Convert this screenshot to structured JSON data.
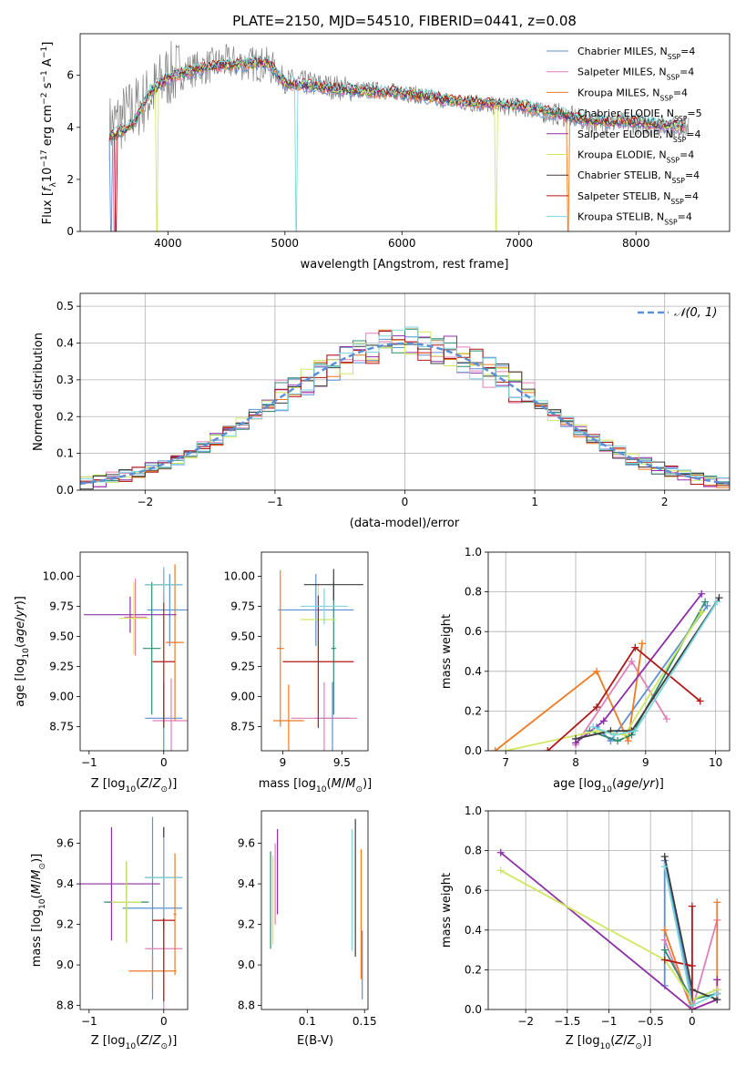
{
  "colors": {
    "Chabrier MILES": "#5b8fd6",
    "Salpeter MILES": "#e07fb8",
    "Kroupa MILES": "#ee7a22",
    "Chabrier ELODIE": "#2f8c6e",
    "Salpeter ELODIE": "#8f2fa8",
    "Kroupa ELODIE": "#cfe860",
    "Chabrier STELIB": "#3c3c3c",
    "Salpeter STELIB": "#b01818",
    "Kroupa STELIB": "#7dd6de",
    "data": "#808080",
    "gaussian": "#5b8fd6"
  },
  "chart_data": [
    {
      "id": "spectrum",
      "type": "line",
      "title": "PLATE=2150, MJD=54510, FIBERID=0441, z=0.08",
      "xlabel": "wavelength [Angstrom, rest frame]",
      "ylabel": "Flux [fλ10⁻¹⁷ erg cm⁻² s⁻¹ A⁻¹]",
      "xlim": [
        3250,
        8800
      ],
      "ylim": [
        0,
        7.6
      ],
      "xticks": [
        4000,
        5000,
        6000,
        7000,
        8000
      ],
      "yticks": [
        0,
        2,
        4,
        6
      ],
      "legend_position": "upper right",
      "legend": [
        {
          "name": "Chabrier MILES, N",
          "sub": "SSP",
          "val": "=4"
        },
        {
          "name": "Salpeter MILES, N",
          "sub": "SSP",
          "val": "=4"
        },
        {
          "name": "Kroupa MILES, N",
          "sub": "SSP",
          "val": "=4"
        },
        {
          "name": "Chabrier ELODIE, N",
          "sub": "SSP",
          "val": "=5"
        },
        {
          "name": "Salpeter ELODIE, N",
          "sub": "SSP",
          "val": "=4"
        },
        {
          "name": "Kroupa ELODIE, N",
          "sub": "SSP",
          "val": "=4"
        },
        {
          "name": "Chabrier STELIB, N",
          "sub": "SSP",
          "val": "=4"
        },
        {
          "name": "Salpeter STELIB, N",
          "sub": "SSP",
          "val": "=4"
        },
        {
          "name": "Kroupa STELIB, N",
          "sub": "SSP",
          "val": "=4"
        }
      ],
      "data_profile": {
        "x": [
          3500,
          3800,
          4000,
          4500,
          4860,
          5000,
          5500,
          6000,
          6500,
          7000,
          7400,
          7600,
          8000,
          8400
        ],
        "y": [
          4.0,
          5.0,
          6.0,
          6.5,
          6.4,
          5.8,
          5.5,
          5.35,
          4.95,
          4.75,
          4.45,
          4.2,
          4.15,
          4.0
        ]
      },
      "model_profile": {
        "x": [
          3500,
          3700,
          3850,
          4000,
          4300,
          4850,
          5000,
          5500,
          6000,
          6500,
          7000,
          7300,
          7600,
          8000,
          8400
        ],
        "y": [
          3.6,
          4.1,
          5.4,
          5.9,
          6.3,
          6.5,
          5.7,
          5.45,
          5.3,
          5.0,
          4.85,
          4.55,
          4.25,
          4.2,
          4.0
        ]
      }
    },
    {
      "id": "residuals",
      "type": "step",
      "xlabel": "(data-model)/error",
      "ylabel": "Normed distribution",
      "xlim": [
        -2.5,
        2.5
      ],
      "ylim": [
        0,
        0.535
      ],
      "xticks": [
        -2,
        -1,
        0,
        1,
        2
      ],
      "yticks": [
        0.0,
        0.1,
        0.2,
        0.3,
        0.4,
        0.5
      ],
      "legend_label": "𝒩(0, 1)",
      "legend_position": "upper right",
      "bin_edges_start": -2.5,
      "bin_width": 0.1
    },
    {
      "id": "age_Z",
      "type": "errorbar",
      "xlabel": "Z [log10(Z/Z⊙)]",
      "ylabel": "age  [log10(age/yr)]",
      "xlim": [
        -1.12,
        0.32
      ],
      "ylim": [
        8.55,
        10.2
      ],
      "xticks": [
        -1,
        0
      ],
      "yticks": [
        8.75,
        9.0,
        9.25,
        9.5,
        9.75,
        10.0
      ],
      "points": [
        {
          "model": "Chabrier MILES",
          "x": 0.08,
          "xerr": 0.3,
          "y": 9.72,
          "yerr": 0.3
        },
        {
          "model": "Chabrier MILES",
          "x": 0.0,
          "xerr": 0.25,
          "y": 8.82,
          "yerr": 0.3
        },
        {
          "model": "Salpeter MILES",
          "x": -0.38,
          "xerr": 0.15,
          "y": 9.66,
          "yerr": 0.32
        },
        {
          "model": "Salpeter MILES",
          "x": 0.1,
          "xerr": 0.25,
          "y": 8.8,
          "yerr": 0.35
        },
        {
          "model": "Kroupa MILES",
          "x": 0.15,
          "xerr": 0.12,
          "y": 9.45,
          "yerr": 0.65
        },
        {
          "model": "Chabrier ELODIE",
          "x": -0.16,
          "xerr": 0.12,
          "y": 9.4,
          "yerr": 0.55
        },
        {
          "model": "Salpeter ELODIE",
          "x": -0.45,
          "xerr": 0.62,
          "y": 9.68,
          "yerr": 0.15
        },
        {
          "model": "Kroupa ELODIE",
          "x": -0.4,
          "xerr": 0.2,
          "y": 9.65,
          "yerr": 0.3
        },
        {
          "model": "Chabrier STELIB",
          "x": 0.0,
          "xerr": 0.25,
          "y": 9.93,
          "yerr": 0.13
        },
        {
          "model": "Salpeter STELIB",
          "x": 0.0,
          "xerr": 0.15,
          "y": 9.29,
          "yerr": 0.55
        },
        {
          "model": "Kroupa STELIB",
          "x": 0.0,
          "xerr": 0.25,
          "y": 9.93,
          "yerr": 0.15
        }
      ]
    },
    {
      "id": "age_mass",
      "type": "errorbar",
      "xlabel": "mass [log10(M/M⊙)]",
      "ylabel": "",
      "xlim": [
        8.82,
        9.72
      ],
      "ylim": [
        8.55,
        10.2
      ],
      "xticks": [
        9.0,
        9.5
      ],
      "yticks": [
        8.75,
        9.0,
        9.25,
        9.5,
        9.75,
        10.0
      ],
      "points": [
        {
          "model": "Chabrier MILES",
          "x": 9.28,
          "xerr": 0.32,
          "y": 9.72,
          "yerr": 0.3
        },
        {
          "model": "Chabrier MILES",
          "x": 9.42,
          "xerr": 0.15,
          "y": 8.82,
          "yerr": 0.3
        },
        {
          "model": "Salpeter MILES",
          "x": 9.35,
          "xerr": 0.28,
          "y": 8.82,
          "yerr": 0.3
        },
        {
          "model": "Kroupa MILES",
          "x": 9.05,
          "xerr": 0.13,
          "y": 8.8,
          "yerr": 0.3
        },
        {
          "model": "Kroupa MILES",
          "x": 8.98,
          "xerr": 0.03,
          "y": 9.4,
          "yerr": 0.65
        },
        {
          "model": "Chabrier ELODIE",
          "x": 9.43,
          "xerr": 0.02,
          "y": 9.4,
          "yerr": 0.55
        },
        {
          "model": "Kroupa ELODIE",
          "x": 9.3,
          "xerr": 0.15,
          "y": 9.64,
          "yerr": 0.3
        },
        {
          "model": "Chabrier STELIB",
          "x": 9.43,
          "xerr": 0.25,
          "y": 9.93,
          "yerr": 0.13
        },
        {
          "model": "Salpeter STELIB",
          "x": 9.3,
          "xerr": 0.3,
          "y": 9.29,
          "yerr": 0.55
        },
        {
          "model": "Kroupa STELIB",
          "x": 9.35,
          "xerr": 0.2,
          "y": 9.75,
          "yerr": 0.15
        }
      ]
    },
    {
      "id": "weight_age",
      "type": "line",
      "xlabel": "age  [log10(age/yr)]",
      "ylabel": "mass weight",
      "xlim": [
        6.75,
        10.2
      ],
      "ylim": [
        0,
        1
      ],
      "xticks": [
        7,
        8,
        9,
        10
      ],
      "yticks": [
        0.0,
        0.2,
        0.4,
        0.6,
        0.8,
        1.0
      ],
      "series": [
        {
          "model": "Chabrier MILES",
          "x": [
            8.3,
            8.5,
            9.88
          ],
          "y": [
            0.12,
            0.05,
            0.73
          ]
        },
        {
          "model": "Salpeter MILES",
          "x": [
            8.0,
            8.8,
            9.3
          ],
          "y": [
            0.03,
            0.45,
            0.16
          ]
        },
        {
          "model": "Kroupa MILES",
          "x": [
            6.85,
            8.3,
            8.75,
            8.95
          ],
          "y": [
            0.0,
            0.4,
            0.05,
            0.54
          ]
        },
        {
          "model": "Chabrier ELODIE",
          "x": [
            8.2,
            8.6,
            8.8,
            9.85
          ],
          "y": [
            0.1,
            0.05,
            0.08,
            0.75
          ]
        },
        {
          "model": "Salpeter ELODIE",
          "x": [
            8.0,
            8.4,
            9.8
          ],
          "y": [
            0.04,
            0.15,
            0.79
          ]
        },
        {
          "model": "Kroupa ELODIE",
          "x": [
            7.0,
            8.3,
            8.7,
            9.8
          ],
          "y": [
            0.0,
            0.1,
            0.08,
            0.7
          ]
        },
        {
          "model": "Chabrier STELIB",
          "x": [
            8.0,
            8.5,
            8.8,
            10.05
          ],
          "y": [
            0.06,
            0.1,
            0.1,
            0.77
          ]
        },
        {
          "model": "Salpeter STELIB",
          "x": [
            7.6,
            8.3,
            8.85,
            9.78
          ],
          "y": [
            0.0,
            0.22,
            0.52,
            0.25
          ]
        },
        {
          "model": "Kroupa STELIB",
          "x": [
            8.25,
            8.55,
            8.85,
            10.02
          ],
          "y": [
            0.12,
            0.08,
            0.1,
            0.75
          ]
        }
      ]
    },
    {
      "id": "mass_Z",
      "type": "errorbar",
      "xlabel": "Z [log10(Z/Z⊙)]",
      "ylabel": "mass [log10(M/M⊙)]",
      "xlim": [
        -1.12,
        0.32
      ],
      "ylim": [
        8.78,
        9.76
      ],
      "xticks": [
        -1,
        0
      ],
      "yticks": [
        8.8,
        9.0,
        9.2,
        9.4,
        9.6
      ],
      "points": [
        {
          "model": "Chabrier MILES",
          "x": -0.15,
          "xerr": 0.4,
          "y": 9.28,
          "yerr": 0.45
        },
        {
          "model": "Salpeter MILES",
          "x": 0.0,
          "xerr": 0.25,
          "y": 9.08,
          "yerr": 0.6
        },
        {
          "model": "Kroupa MILES",
          "x": -0.15,
          "xerr": 0.32,
          "y": 8.97,
          "yerr": 0.08
        },
        {
          "model": "Kroupa MILES",
          "x": 0.15,
          "xerr": 0.02,
          "y": 9.25,
          "yerr": 0.3
        },
        {
          "model": "Chabrier ELODIE",
          "x": -0.5,
          "xerr": 0.3,
          "y": 9.31,
          "yerr": 0.2
        },
        {
          "model": "Salpeter ELODIE",
          "x": -0.7,
          "xerr": 0.65,
          "y": 9.4,
          "yerr": 0.28
        },
        {
          "model": "Kroupa ELODIE",
          "x": -0.5,
          "xerr": 0.2,
          "y": 9.31,
          "yerr": 0.2
        },
        {
          "model": "Chabrier STELIB",
          "x": 0.0,
          "xerr": 0.25,
          "y": 9.43,
          "yerr": 0.25
        },
        {
          "model": "Salpeter STELIB",
          "x": 0.0,
          "xerr": 0.15,
          "y": 9.22,
          "yerr": 0.4
        },
        {
          "model": "Kroupa STELIB",
          "x": 0.0,
          "xerr": 0.25,
          "y": 9.43,
          "yerr": 0.2
        }
      ]
    },
    {
      "id": "mass_ebv",
      "type": "errorbar",
      "xlabel": "E(B-V)",
      "ylabel": "",
      "xlim": [
        0.06,
        0.153
      ],
      "ylim": [
        8.78,
        9.76
      ],
      "xticks": [
        0.1,
        0.15
      ],
      "yticks": [
        8.8,
        9.0,
        9.2,
        9.4,
        9.6
      ],
      "points": [
        {
          "model": "Chabrier MILES",
          "x": 0.148,
          "y": 9.0,
          "yerr": 0.17
        },
        {
          "model": "Salpeter MILES",
          "x": 0.072,
          "y": 9.4,
          "yerr": 0.2
        },
        {
          "model": "Kroupa MILES",
          "x": 0.147,
          "y": 9.25,
          "yerr": 0.32
        },
        {
          "model": "Chabrier ELODIE",
          "x": 0.068,
          "y": 9.32,
          "yerr": 0.24
        },
        {
          "model": "Salpeter ELODIE",
          "x": 0.074,
          "y": 9.46,
          "yerr": 0.21
        },
        {
          "model": "Kroupa ELODIE",
          "x": 0.07,
          "y": 9.32,
          "yerr": 0.22
        },
        {
          "model": "Chabrier STELIB",
          "x": 0.142,
          "y": 9.38,
          "yerr": 0.34
        },
        {
          "model": "Kroupa STELIB",
          "x": 0.139,
          "y": 9.37,
          "yerr": 0.3
        }
      ]
    },
    {
      "id": "weight_Z",
      "type": "line",
      "xlabel": "Z [log10(Z/Z⊙)]",
      "ylabel": "mass weight",
      "xlim": [
        -2.45,
        0.45
      ],
      "ylim": [
        0,
        1
      ],
      "xticks": [
        -2.0,
        -1.5,
        -1.0,
        -0.5,
        0.0
      ],
      "yticks": [
        0.0,
        0.2,
        0.4,
        0.6,
        0.8,
        1.0
      ],
      "series": [
        {
          "model": "Chabrier MILES",
          "x": [
            -0.33,
            -0.33,
            0.0,
            0.3
          ],
          "y": [
            0.12,
            0.75,
            0.05,
            0.1
          ]
        },
        {
          "model": "Salpeter MILES",
          "x": [
            -0.33,
            0.0,
            0.3
          ],
          "y": [
            0.35,
            0.0,
            0.45
          ]
        },
        {
          "model": "Kroupa MILES",
          "x": [
            -0.33,
            0.0,
            0.3,
            0.3
          ],
          "y": [
            0.4,
            0.0,
            0.05,
            0.54
          ]
        },
        {
          "model": "Chabrier ELODIE",
          "x": [
            -0.33,
            0.0,
            0.3,
            0.3
          ],
          "y": [
            0.3,
            0.05,
            0.08,
            0.1
          ]
        },
        {
          "model": "Salpeter ELODIE",
          "x": [
            -2.3,
            0.0,
            0.3,
            0.3
          ],
          "y": [
            0.79,
            0.0,
            0.05,
            0.15
          ]
        },
        {
          "model": "Kroupa ELODIE",
          "x": [
            -2.3,
            -0.33,
            0.0,
            0.3
          ],
          "y": [
            0.7,
            0.25,
            0.05,
            0.1
          ]
        },
        {
          "model": "Chabrier STELIB",
          "x": [
            -0.33,
            0.0,
            0.3,
            0.3
          ],
          "y": [
            0.77,
            0.1,
            0.05,
            0.08
          ]
        },
        {
          "model": "Salpeter STELIB",
          "x": [
            -0.33,
            0.0,
            0.0,
            0.0
          ],
          "y": [
            0.25,
            0.22,
            0.52,
            0.0
          ]
        },
        {
          "model": "Kroupa STELIB",
          "x": [
            -0.33,
            0.0,
            0.3
          ],
          "y": [
            0.72,
            0.02,
            0.08
          ]
        }
      ]
    }
  ]
}
